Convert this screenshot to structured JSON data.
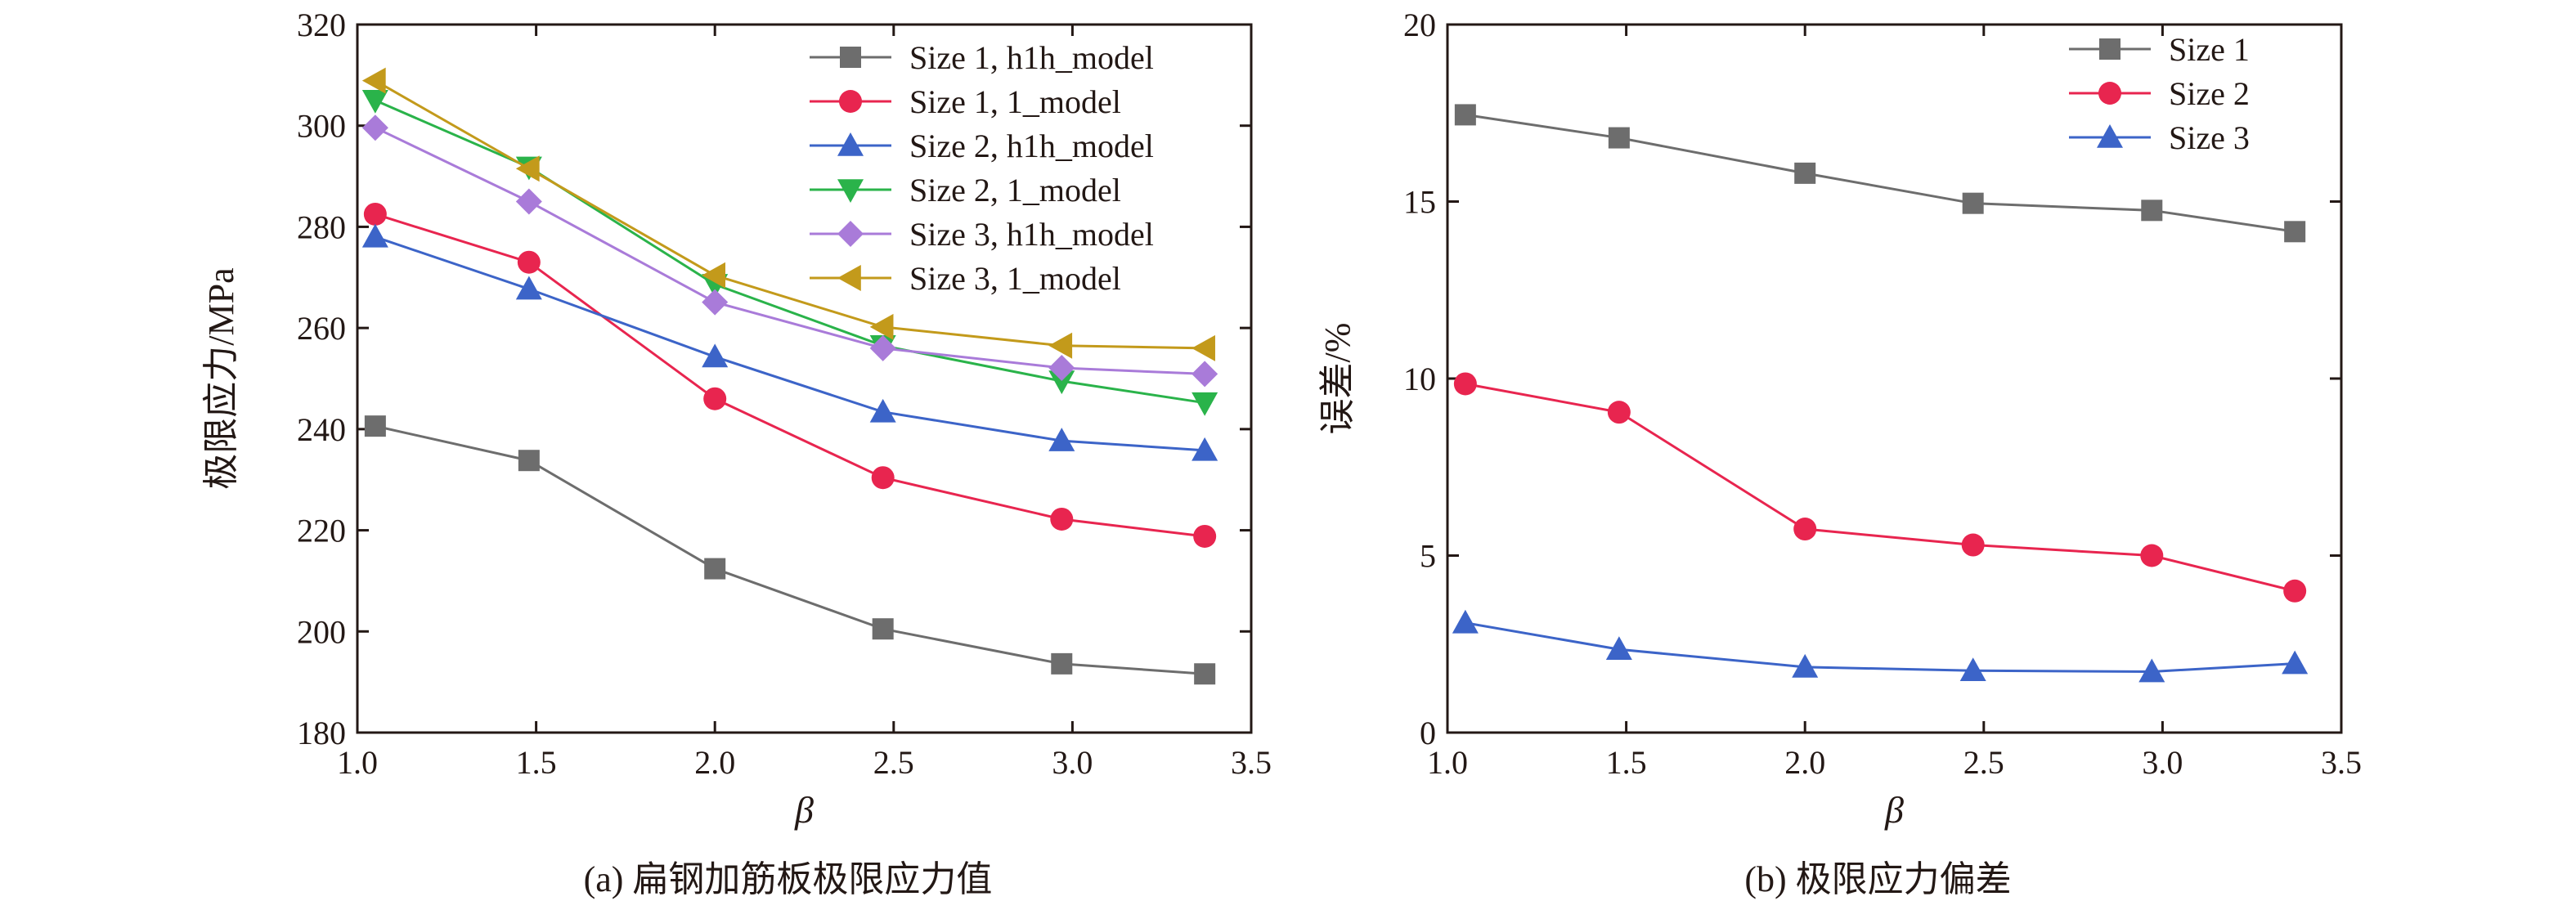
{
  "chart_data": [
    {
      "type": "line",
      "caption": "(a) 扁钢加筋板极限应力值",
      "xlabel": "β",
      "ylabel": "极限应力/MPa",
      "xlim": [
        1.0,
        3.5
      ],
      "ylim": [
        180,
        320
      ],
      "xticks": [
        "1.0",
        "1.5",
        "2.0",
        "2.5",
        "3.0",
        "3.5"
      ],
      "yticks": [
        "180",
        "200",
        "220",
        "240",
        "260",
        "280",
        "300",
        "320"
      ],
      "x": [
        1.05,
        1.48,
        2.0,
        2.47,
        2.97,
        3.37
      ],
      "legend_position": "top-right",
      "grid": false,
      "series": [
        {
          "name": "Size 1, h1h_model",
          "marker": "square",
          "color": "#6d6d6d",
          "values": [
            240.6,
            233.8,
            212.4,
            200.5,
            193.6,
            191.6
          ]
        },
        {
          "name": "Size 1, 1_model",
          "marker": "circle",
          "color": "#e8254f",
          "values": [
            282.5,
            273.0,
            246.0,
            230.4,
            222.2,
            218.8
          ]
        },
        {
          "name": "Size 2, h1h_model",
          "marker": "triangle-up",
          "color": "#3c64c8",
          "values": [
            278.0,
            267.7,
            254.3,
            243.4,
            237.7,
            235.8
          ]
        },
        {
          "name": "Size 2, 1_model",
          "marker": "triangle-down",
          "color": "#2ab34a",
          "values": [
            305.0,
            291.8,
            268.6,
            256.5,
            249.5,
            245.2
          ]
        },
        {
          "name": "Size 3, h1h_model",
          "marker": "diamond",
          "color": "#a97bd9",
          "values": [
            299.6,
            285.0,
            265.1,
            256.0,
            252.1,
            250.9
          ]
        },
        {
          "name": "Size 3, 1_model",
          "marker": "triangle-left",
          "color": "#c39a1b",
          "values": [
            308.9,
            291.5,
            270.4,
            260.2,
            256.5,
            256.0
          ]
        }
      ]
    },
    {
      "type": "line",
      "caption": "(b) 极限应力偏差",
      "xlabel": "β",
      "ylabel": "误差/%",
      "xlim": [
        1.0,
        3.5
      ],
      "ylim": [
        0,
        20
      ],
      "xticks": [
        "1.0",
        "1.5",
        "2.0",
        "2.5",
        "3.0",
        "3.5"
      ],
      "yticks": [
        "0",
        "5",
        "10",
        "15",
        "20"
      ],
      "x": [
        1.05,
        1.48,
        2.0,
        2.47,
        2.97,
        3.37
      ],
      "legend_position": "top-right",
      "grid": false,
      "series": [
        {
          "name": "Size 1",
          "marker": "square",
          "color": "#6d6d6d",
          "values": [
            17.45,
            16.8,
            15.8,
            14.95,
            14.75,
            14.15
          ]
        },
        {
          "name": "Size 2",
          "marker": "circle",
          "color": "#e8254f",
          "values": [
            9.85,
            9.05,
            5.75,
            5.3,
            5.0,
            4.0
          ]
        },
        {
          "name": "Size 3",
          "marker": "triangle-up",
          "color": "#3c64c8",
          "values": [
            3.1,
            2.35,
            1.85,
            1.75,
            1.72,
            1.95
          ]
        }
      ]
    }
  ]
}
